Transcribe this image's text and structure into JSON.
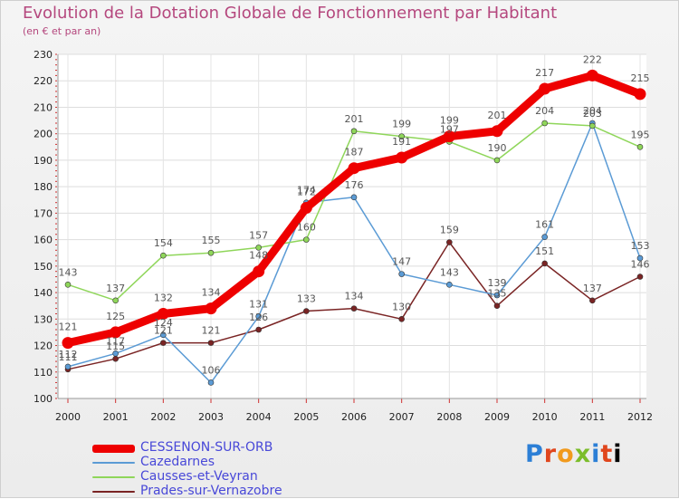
{
  "chart_data": {
    "type": "line",
    "title": "Evolution de la Dotation Globale de Fonctionnement par Habitant",
    "subtitle": "(en € et par an)",
    "xlabel": "",
    "ylabel": "",
    "ylim": [
      100,
      230
    ],
    "yticks": [
      100,
      110,
      120,
      130,
      140,
      150,
      160,
      170,
      180,
      190,
      200,
      210,
      220,
      230
    ],
    "x": [
      "2000",
      "2001",
      "2002",
      "2003",
      "2004",
      "2005",
      "2006",
      "2007",
      "2008",
      "2009",
      "2010",
      "2011",
      "2012"
    ],
    "grid": true,
    "legend_position": "bottom-left",
    "series": [
      {
        "name": "CESSENON-SUR-ORB",
        "color": "#ee0000",
        "values": [
          121,
          125,
          132,
          134,
          148,
          172,
          187,
          191,
          199,
          201,
          217,
          222,
          215
        ]
      },
      {
        "name": "Cazedarnes",
        "color": "#5b9bd5",
        "values": [
          112,
          117,
          124,
          106,
          131,
          174,
          176,
          147,
          143,
          139,
          161,
          204,
          153
        ]
      },
      {
        "name": "Causses-et-Veyran",
        "color": "#8fd65a",
        "values": [
          143,
          137,
          154,
          155,
          157,
          160,
          201,
          199,
          197,
          190,
          204,
          203,
          195
        ]
      },
      {
        "name": "Prades-sur-Vernazobre",
        "color": "#7a2424",
        "values": [
          111,
          115,
          121,
          121,
          126,
          133,
          134,
          130,
          159,
          135,
          151,
          137,
          146
        ]
      }
    ]
  },
  "logo": {
    "letters": [
      "P",
      "r",
      "o",
      "x",
      "i",
      "t",
      "i"
    ]
  }
}
